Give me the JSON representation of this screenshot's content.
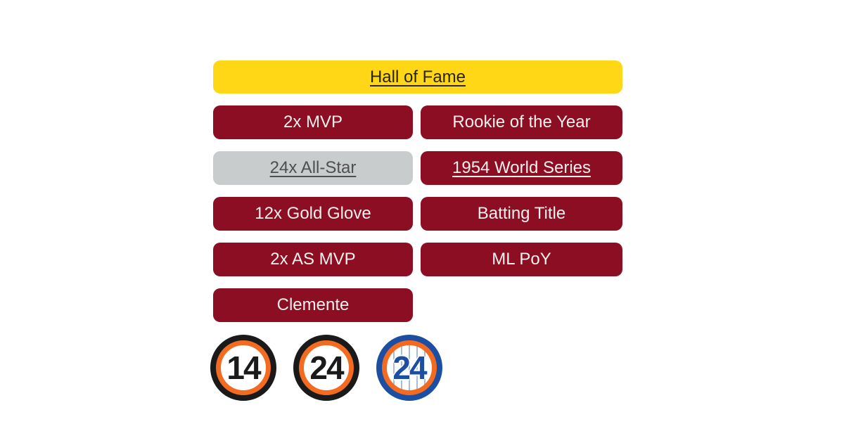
{
  "colors": {
    "background": "#ffffff",
    "banner_gold": "#FFD717",
    "badge_maroon": "#8B0E23",
    "badge_silver": "#C9CCCC",
    "text_on_gold": "#2A240B",
    "text_on_maroon": "#F7EEEE",
    "text_on_silver": "#4F4F4F",
    "ring_black": "#1A1A1A",
    "ring_orange": "#F26B21",
    "ring_blue": "#1C4FA1",
    "pinstripe_blue": "#A9BCD9"
  },
  "badges": {
    "hall_of_fame": "Hall of Fame",
    "mvp": "2x MVP",
    "rookie_of_the_year": "Rookie of the Year",
    "all_star": "24x All-Star",
    "world_series_1954": "1954 World Series",
    "gold_glove": "12x Gold Glove",
    "batting_title": "Batting Title",
    "all_star_mvp": "2x AS MVP",
    "ml_poy": "ML PoY",
    "clemente": "Clemente"
  },
  "retired_numbers": [
    {
      "value": "14",
      "style": "black-orange"
    },
    {
      "value": "24",
      "style": "black-orange"
    },
    {
      "value": "24",
      "style": "blue-orange-pinstripe"
    }
  ]
}
